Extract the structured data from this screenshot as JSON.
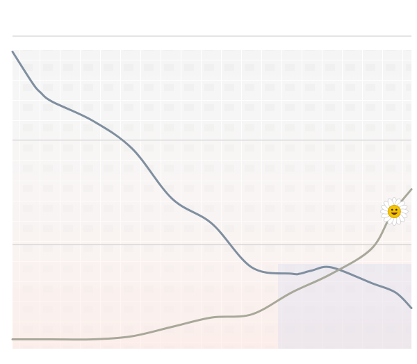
{
  "chart_data": {
    "type": "line",
    "title": "",
    "xlabel": "",
    "ylabel": "",
    "grid": true,
    "legend": "none",
    "xlim": [
      0,
      100
    ],
    "ylim": [
      0,
      100
    ],
    "gridlines_y": [
      100,
      66.7,
      33.3
    ],
    "series": [
      {
        "color": "#7f8fa0",
        "x": [
          0,
          5,
          7,
          10,
          20,
          30,
          40,
          50,
          60,
          70,
          72,
          75,
          80,
          90,
          96,
          100
        ],
        "y": [
          95,
          85,
          82,
          79,
          73,
          64,
          48,
          40,
          26,
          24,
          24,
          25,
          26,
          21,
          18,
          13
        ]
      },
      {
        "color": "#a8a89a",
        "x": [
          0,
          10,
          20,
          30,
          40,
          50,
          60,
          70,
          80,
          90,
          95,
          100
        ],
        "y": [
          3,
          3,
          3,
          4,
          7,
          10,
          11,
          18,
          24,
          32,
          43,
          51
        ]
      }
    ],
    "marker": {
      "icon": "daisy-smiley-icon",
      "series": 1,
      "x": 95
    }
  }
}
